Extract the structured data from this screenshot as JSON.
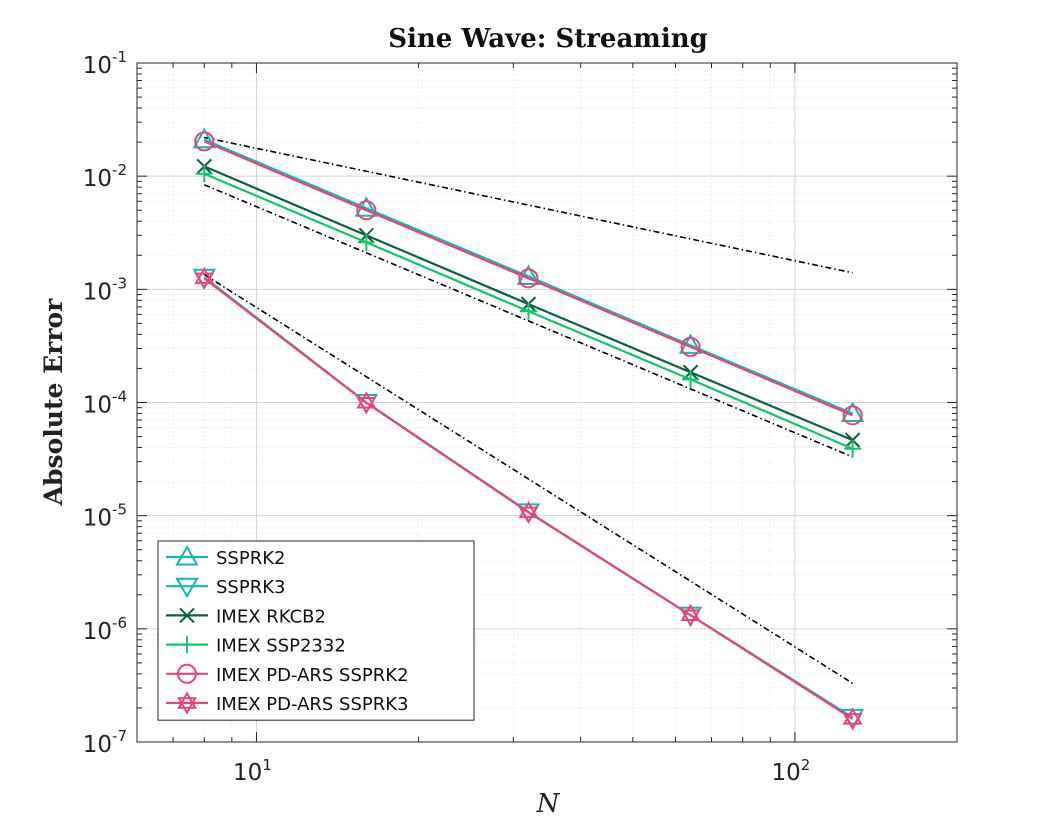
{
  "chart_data": {
    "type": "line",
    "title": "Sine Wave: Streaming",
    "xlabel": "N",
    "ylabel": "Absolute Error",
    "xscale": "log",
    "yscale": "log",
    "xlim": [
      6,
      200
    ],
    "ylim": [
      1e-07,
      0.1
    ],
    "grid": true,
    "minor_grid": true,
    "legend_position": "bottom-left",
    "x_ticks": [
      {
        "base": "10",
        "exp": "1",
        "value": 10
      },
      {
        "base": "10",
        "exp": "2",
        "value": 100
      }
    ],
    "y_ticks": [
      {
        "base": "10",
        "exp": "-1",
        "value": 0.1
      },
      {
        "base": "10",
        "exp": "-2",
        "value": 0.01
      },
      {
        "base": "10",
        "exp": "-3",
        "value": 0.001
      },
      {
        "base": "10",
        "exp": "-4",
        "value": 0.0001
      },
      {
        "base": "10",
        "exp": "-5",
        "value": 1e-05
      },
      {
        "base": "10",
        "exp": "-6",
        "value": 1e-06
      },
      {
        "base": "10",
        "exp": "-7",
        "value": 1e-07
      }
    ],
    "x": [
      8,
      16,
      32,
      64,
      128
    ],
    "series": [
      {
        "name": "SSPRK2",
        "color": "#17b5b5",
        "marker": "triangle-up",
        "values": [
          0.021,
          0.0052,
          0.0013,
          0.00032,
          8e-05
        ]
      },
      {
        "name": "SSPRK3",
        "color": "#17b5b5",
        "marker": "triangle-down",
        "values": [
          0.00128,
          0.0001,
          1.08e-05,
          1.32e-06,
          1.65e-07
        ]
      },
      {
        "name": "IMEX RKCB2",
        "color": "#0d5f3f",
        "marker": "x",
        "values": [
          0.0122,
          0.003,
          0.00074,
          0.000185,
          4.65e-05
        ]
      },
      {
        "name": "IMEX SSP2332",
        "color": "#16c46a",
        "marker": "plus",
        "values": [
          0.0105,
          0.0026,
          0.00064,
          0.00016,
          3.9e-05
        ]
      },
      {
        "name": "IMEX PD-ARS SSPRK2",
        "color": "#e5467a",
        "marker": "circle",
        "values": [
          0.0203,
          0.005,
          0.00125,
          0.00031,
          7.7e-05
        ]
      },
      {
        "name": "IMEX PD-ARS SSPRK3",
        "color": "#e5467a",
        "marker": "hexagram",
        "values": [
          0.00125,
          9.95e-05,
          1.07e-05,
          1.32e-06,
          1.6e-07
        ]
      }
    ],
    "reference_lines": [
      {
        "x": [
          8,
          128
        ],
        "y": [
          0.022,
          0.0014
        ]
      },
      {
        "x": [
          8,
          128
        ],
        "y": [
          0.0084,
          3.3e-05
        ]
      },
      {
        "x": [
          8,
          128
        ],
        "y": [
          0.00135,
          3.3e-07
        ]
      }
    ]
  }
}
